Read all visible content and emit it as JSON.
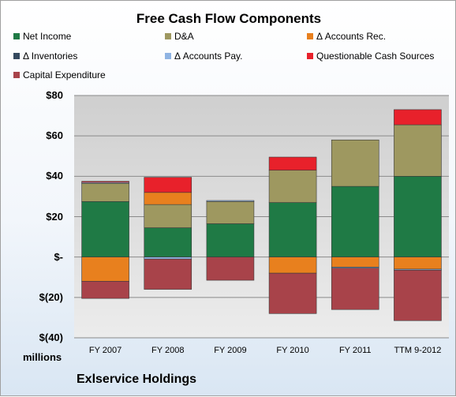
{
  "chart_data": {
    "type": "bar",
    "stacked": true,
    "title": "Free Cash Flow Components",
    "xlabel": "",
    "ylabel": "",
    "units_label": "millions",
    "footer": "Exlservice Holdings",
    "categories": [
      "FY 2007",
      "FY 2008",
      "FY 2009",
      "FY 2010",
      "FY 2011",
      "TTM 9-2012"
    ],
    "ylim": [
      -40,
      80
    ],
    "yticks": [
      80,
      60,
      40,
      20,
      0,
      -20,
      -40
    ],
    "ytick_labels": [
      "$80",
      "$60",
      "$40",
      "$20",
      "$-",
      "$(20)",
      "$(40)"
    ],
    "grid": true,
    "legend_position": "top",
    "series": [
      {
        "name": "Net Income",
        "color": "#1f7a45",
        "values": [
          27.5,
          14.5,
          16.5,
          27,
          35,
          40
        ]
      },
      {
        "name": "D&A",
        "color": "#9e9860",
        "values": [
          9,
          11.5,
          11,
          16,
          23,
          25.5
        ]
      },
      {
        "name": "Δ Accounts Rec.",
        "color": "#e8801e",
        "values": [
          -12,
          6,
          0,
          -8,
          -5,
          -6
        ]
      },
      {
        "name": "Δ Inventories",
        "color": "#34495e",
        "values": [
          0,
          0,
          0,
          0,
          0,
          0
        ]
      },
      {
        "name": "Δ Accounts Pay.",
        "color": "#8fb4e3",
        "values": [
          0.5,
          -1,
          0.5,
          0,
          -0.5,
          -0.5
        ]
      },
      {
        "name": "Questionable Cash Sources",
        "color": "#e8212b",
        "values": [
          0.5,
          7.5,
          0,
          6.5,
          0,
          7.5
        ]
      },
      {
        "name": "Capital Expenditure",
        "color": "#a8434a",
        "values": [
          -8.5,
          -15,
          -11.5,
          -20,
          -20.5,
          -25
        ]
      }
    ]
  }
}
